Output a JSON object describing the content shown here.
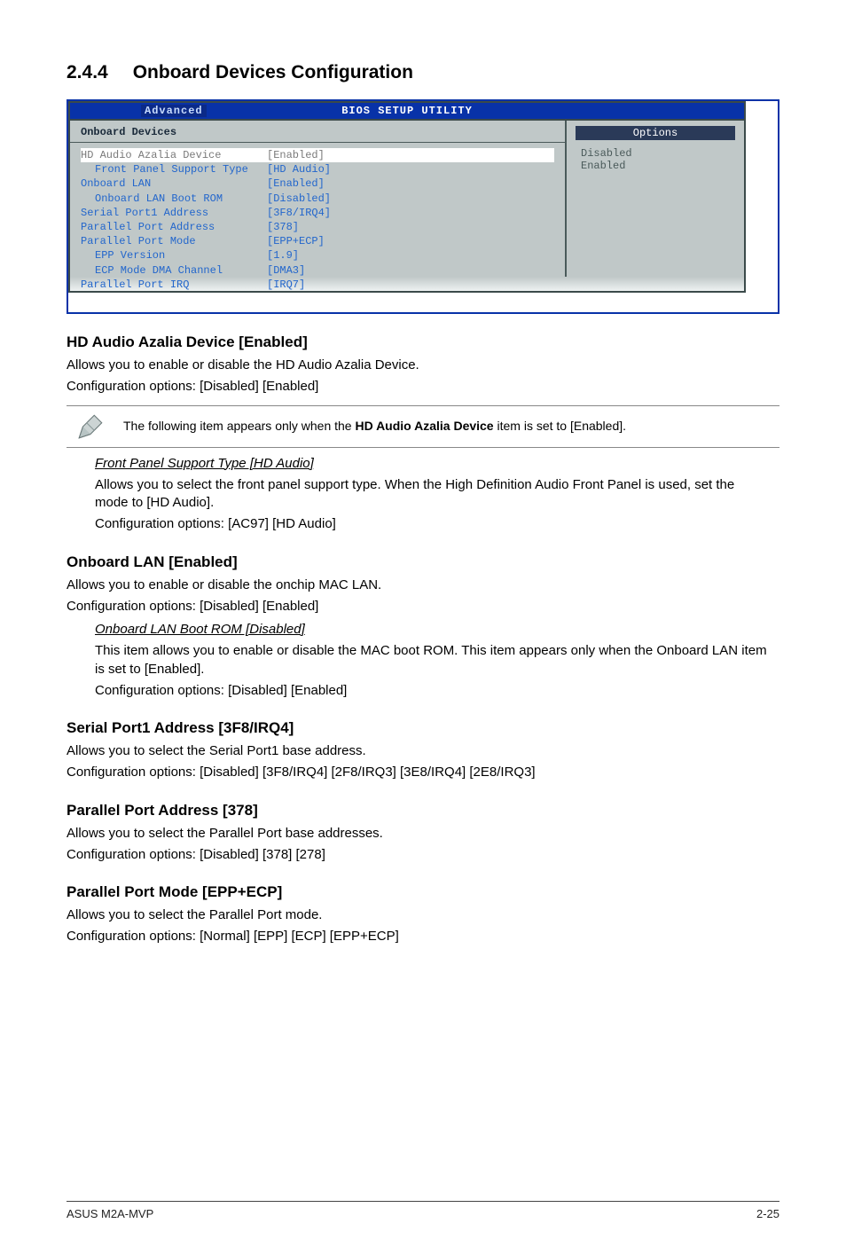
{
  "heading": {
    "num": "2.4.4",
    "title": "Onboard Devices Configuration"
  },
  "bios": {
    "title": "BIOS SETUP UTILITY",
    "tab": "Advanced",
    "left_header": "Onboard Devices",
    "rows": [
      {
        "k": "HD Audio Azalia Device",
        "v": "[Enabled]",
        "sel": true
      },
      {
        "k": "Front Panel Support Type",
        "v": "[HD Audio]",
        "indent": 1
      },
      {
        "k": "Onboard LAN",
        "v": "[Enabled]"
      },
      {
        "k": "Onboard LAN Boot ROM",
        "v": "[Disabled]",
        "indent": 1
      },
      {
        "k": "Serial Port1 Address",
        "v": "[3F8/IRQ4]"
      },
      {
        "k": "Parallel Port Address",
        "v": "[378]"
      },
      {
        "k": "Parallel Port Mode",
        "v": "[EPP+ECP]"
      },
      {
        "k": "EPP Version",
        "v": "[1.9]",
        "indent": 1
      },
      {
        "k": "ECP Mode DMA Channel",
        "v": "[DMA3]",
        "indent": 1
      },
      {
        "k": "Parallel Port IRQ",
        "v": "[IRQ7]"
      }
    ],
    "options_title": "Options",
    "options": [
      "Disabled",
      "Enabled"
    ]
  },
  "sections": [
    {
      "h": "HD Audio Azalia Device [Enabled]",
      "p": [
        "Allows you to enable or disable the HD Audio Azalia Device.",
        "Configuration options: [Disabled] [Enabled]"
      ],
      "note": {
        "pre": "The following item appears only when the ",
        "bold": "HD Audio Azalia Device",
        "post": " item is set to [Enabled]."
      },
      "sub": [
        {
          "ital": "Front Panel Support Type [HD Audio]",
          "lines": [
            "Allows you to select the front panel support type. When the High Definition Audio Front Panel is used, set the mode to [HD Audio].",
            "Configuration options: [AC97] [HD Audio]"
          ]
        }
      ]
    },
    {
      "h": "Onboard LAN [Enabled]",
      "p": [
        "Allows you to enable or disable the onchip MAC LAN.",
        "Configuration options: [Disabled] [Enabled]"
      ],
      "sub": [
        {
          "ital": "Onboard LAN Boot ROM [Disabled]",
          "lines": [
            "This item allows you to enable or disable the MAC boot ROM. This item appears only when the Onboard LAN item is set to [Enabled].",
            "Configuration options: [Disabled] [Enabled]"
          ]
        }
      ]
    },
    {
      "h": "Serial Port1 Address [3F8/IRQ4]",
      "p": [
        "Allows you to select the Serial Port1 base address.",
        "Configuration options: [Disabled] [3F8/IRQ4] [2F8/IRQ3] [3E8/IRQ4] [2E8/IRQ3]"
      ]
    },
    {
      "h": "Parallel Port Address [378]",
      "p": [
        "Allows you to select the Parallel Port base addresses.",
        "Configuration options: [Disabled] [378] [278]"
      ]
    },
    {
      "h": "Parallel Port Mode [EPP+ECP]",
      "p": [
        "Allows you to select the Parallel Port  mode.",
        "Configuration options: [Normal] [EPP] [ECP] [EPP+ECP]"
      ]
    }
  ],
  "footer": {
    "left": "ASUS M2A-MVP",
    "right": "2-25"
  }
}
